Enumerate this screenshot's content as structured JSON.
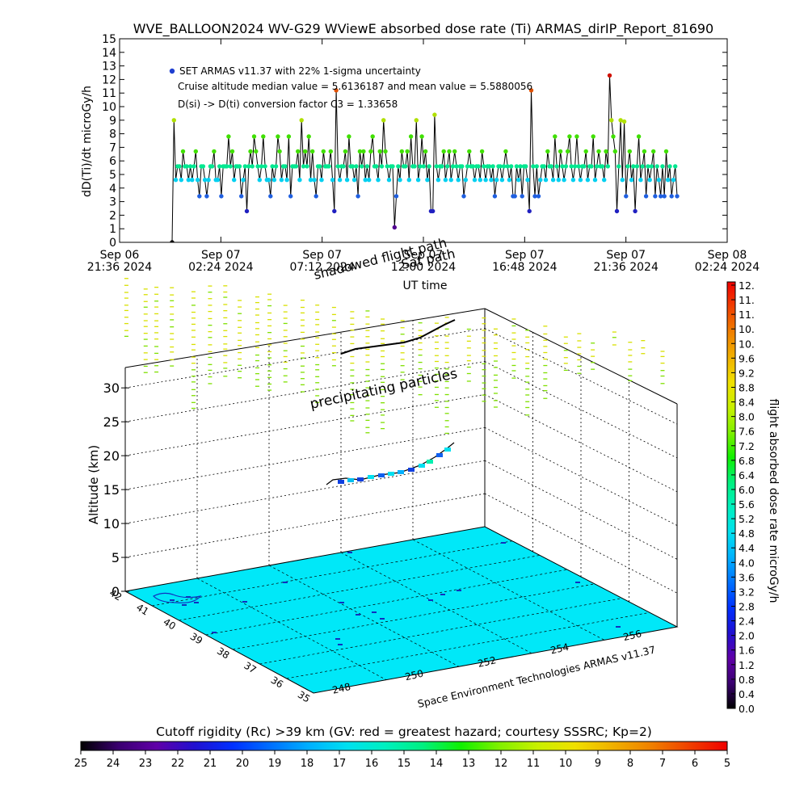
{
  "chart_data": [
    {
      "type": "scatter",
      "title": "WVE_BALLOON2024 WV-G29 WViewE absorbed dose rate (Ti) ARMAS_dirIP_Report_81690",
      "ylabel": "dD(Ti)/dt microGy/h",
      "xlabel": "UT time",
      "ylim": [
        0,
        15
      ],
      "yticks": [
        "0",
        "1",
        "2",
        "3",
        "4",
        "5",
        "6",
        "7",
        "8",
        "9",
        "10",
        "11",
        "12",
        "13",
        "14",
        "15"
      ],
      "xticks": [
        {
          "date": "Sep 06",
          "time": "21:36 2024"
        },
        {
          "date": "Sep 07",
          "time": "02:24 2024"
        },
        {
          "date": "Sep 07",
          "time": "07:12 2024"
        },
        {
          "date": "Sep 07",
          "time": "12:00 2024"
        },
        {
          "date": "Sep 07",
          "time": "16:48 2024"
        },
        {
          "date": "Sep 07",
          "time": "21:36 2024"
        },
        {
          "date": "Sep 08",
          "time": "02:24 2024"
        }
      ],
      "annotations": [
        "SET ARMAS v11.37 with 22% 1-sigma uncertainty",
        "Cruise altitude median value = 5.6136187 and mean value = 5.5880056",
        "D(si) -> D(ti) conversion factor C3 = 1.33658"
      ],
      "legend_color": "#1f3fd0",
      "median": 5.6136187,
      "mean": 5.5880056,
      "series": [
        {
          "values": [
            0.0,
            9.0,
            4.6,
            5.6,
            5.6,
            4.6,
            6.7,
            5.6,
            5.6,
            4.6,
            5.6,
            4.6,
            5.6,
            6.7,
            4.6,
            3.4,
            5.6,
            5.6,
            4.6,
            3.4,
            4.6,
            5.6,
            5.6,
            6.7,
            4.6,
            4.6,
            5.6,
            3.4,
            5.6,
            5.6,
            5.6,
            7.8,
            5.6,
            6.7,
            4.6,
            5.6,
            5.6,
            5.6,
            3.4,
            4.6,
            5.6,
            2.3,
            5.6,
            6.7,
            5.6,
            7.8,
            6.7,
            5.6,
            4.6,
            5.6,
            7.8,
            5.6,
            4.6,
            4.6,
            3.4,
            5.6,
            4.6,
            5.6,
            7.8,
            6.7,
            4.6,
            5.6,
            5.6,
            4.6,
            7.8,
            3.4,
            5.6,
            5.6,
            5.6,
            6.7,
            4.6,
            9.0,
            5.6,
            6.7,
            5.6,
            7.8,
            4.6,
            6.7,
            4.6,
            3.4,
            5.6,
            5.6,
            4.6,
            6.7,
            5.6,
            5.6,
            5.6,
            6.7,
            4.6,
            2.3,
            11.2,
            5.6,
            4.6,
            5.6,
            5.6,
            6.7,
            4.6,
            7.8,
            5.6,
            5.6,
            4.6,
            5.6,
            3.4,
            6.7,
            5.6,
            6.7,
            4.6,
            5.6,
            4.6,
            6.7,
            7.8,
            5.6,
            5.6,
            4.6,
            6.7,
            5.6,
            9.0,
            6.7,
            5.6,
            4.6,
            5.6,
            5.6,
            1.1,
            3.4,
            5.6,
            4.6,
            6.7,
            5.6,
            5.6,
            6.7,
            4.6,
            7.8,
            5.6,
            5.6,
            9.0,
            4.6,
            5.6,
            7.8,
            5.6,
            6.7,
            4.6,
            5.6,
            2.3,
            2.3,
            9.4,
            5.6,
            4.6,
            5.6,
            5.6,
            6.7,
            4.6,
            5.6,
            6.7,
            4.6,
            5.6,
            6.7,
            5.6,
            4.6,
            5.6,
            5.6,
            3.4,
            4.6,
            5.6,
            6.7,
            5.6,
            5.6,
            4.6,
            5.6,
            5.6,
            4.6,
            6.7,
            5.6,
            4.6,
            5.6,
            5.6,
            4.6,
            5.6,
            3.4,
            4.6,
            5.6,
            5.6,
            4.6,
            5.6,
            6.7,
            5.6,
            4.6,
            5.6,
            3.4,
            3.4,
            5.6,
            4.6,
            5.6,
            3.4,
            5.6,
            5.6,
            4.6,
            2.3,
            11.2,
            5.6,
            3.4,
            5.6,
            3.4,
            4.6,
            5.6,
            5.6,
            4.6,
            6.7,
            5.6,
            5.6,
            4.6,
            7.8,
            5.6,
            4.6,
            6.7,
            5.6,
            4.6,
            5.6,
            6.7,
            7.8,
            5.6,
            4.6,
            5.6,
            7.8,
            5.6,
            4.6,
            5.6,
            5.6,
            6.7,
            4.6,
            5.6,
            5.6,
            7.8,
            4.6,
            5.6,
            6.7,
            5.6,
            5.6,
            4.6,
            6.7,
            5.6,
            12.3,
            9.0,
            7.8,
            6.7,
            2.3,
            5.6,
            9.0,
            4.6,
            8.9,
            3.4,
            5.6,
            6.7,
            4.6,
            5.6,
            2.3,
            5.6,
            7.8,
            4.6,
            5.6,
            6.7,
            3.4,
            5.6,
            4.6,
            5.6,
            6.7,
            3.4,
            5.6,
            4.6,
            3.4,
            5.6,
            3.4,
            6.7,
            4.6,
            5.6,
            3.4,
            4.6,
            5.6,
            3.4
          ]
        }
      ]
    },
    {
      "type": "scatter",
      "zlabel": "Altitude (km)",
      "zticks": [
        "0",
        "5",
        "10",
        "15",
        "20",
        "25",
        "30"
      ],
      "lat_ticks": [
        "42",
        "41",
        "40",
        "39",
        "38",
        "37",
        "36",
        "35"
      ],
      "lon_ticks": [
        "248",
        "250",
        "252",
        "254",
        "256"
      ],
      "annotations": [
        "precipitating particles",
        "shadowed flight path",
        "Sat path"
      ],
      "credit": "Space Environment Technologies ARMAS v11.37",
      "colorbar": {
        "label": "flight absorbed dose rate microGy/h",
        "ticks": [
          "0.0",
          "0.4",
          "0.8",
          "1.2",
          "1.6",
          "2.0",
          "2.4",
          "2.8",
          "3.2",
          "3.6",
          "4.0",
          "4.4",
          "4.8",
          "5.2",
          "5.6",
          "6.0",
          "6.4",
          "6.8",
          "7.2",
          "7.6",
          "8.0",
          "8.4",
          "8.8",
          "9.2",
          "9.6",
          "10.",
          "10.",
          "11.",
          "11.",
          "12."
        ]
      },
      "rigidity_bar": {
        "label": "Cutoff rigidity (Rc) >39 km (GV: red = greatest hazard; courtesy SSSRC; Kp=2)",
        "ticks": [
          "25",
          "24",
          "23",
          "22",
          "21",
          "20",
          "19",
          "18",
          "17",
          "16",
          "15",
          "14",
          "13",
          "12",
          "11",
          "10",
          "9",
          "8",
          "7",
          "6",
          "5"
        ]
      },
      "ground_color": "#00e8f8"
    }
  ]
}
